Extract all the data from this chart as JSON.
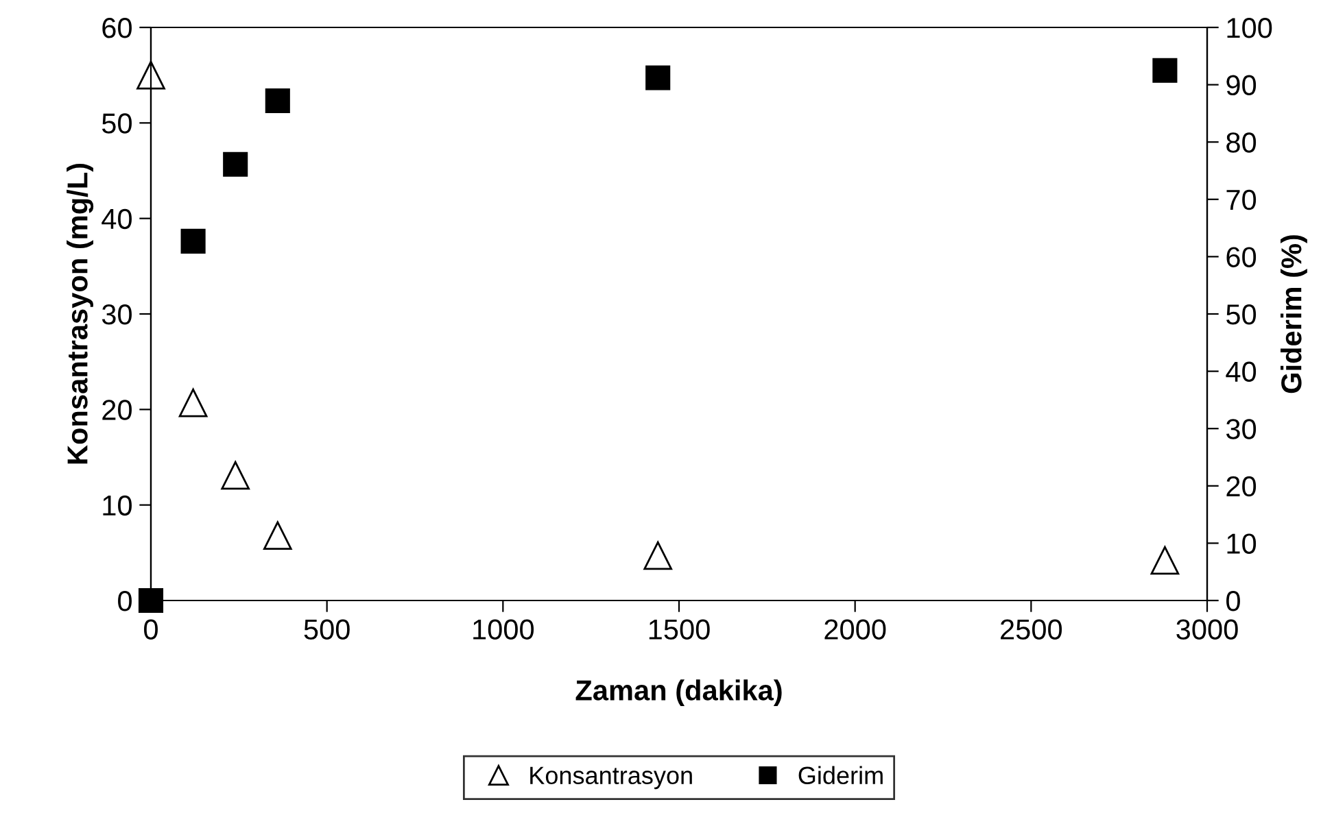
{
  "chart_data": {
    "type": "scatter",
    "xlabel": "Zaman (dakika)",
    "ylabel": "Konsantrasyon (mg/L)",
    "y2label": "Giderim (%)",
    "x": [
      0,
      120,
      240,
      360,
      1440,
      2880
    ],
    "series": [
      {
        "name": "Konsantrasyon",
        "color": "#000000",
        "marker": "triangle",
        "values": [
          55,
          20.7,
          13.1,
          6.8,
          4.7,
          4.2
        ]
      },
      {
        "name": "Giderim",
        "color": "#000000",
        "marker": "square",
        "axis": "y2",
        "values": [
          0,
          62.7,
          76.1,
          87.2,
          91.2,
          92.5
        ]
      }
    ],
    "xlim": [
      0,
      3000
    ],
    "xticks": [
      0,
      500,
      1000,
      1500,
      2000,
      2500,
      3000
    ],
    "ylim": [
      0,
      60
    ],
    "yticks": [
      0,
      10,
      20,
      30,
      40,
      50,
      60
    ],
    "y2lim": [
      0,
      100
    ],
    "y2ticks": [
      0,
      10,
      20,
      30,
      40,
      50,
      60,
      70,
      80,
      90,
      100
    ],
    "grid": false,
    "legend": "bottom"
  }
}
